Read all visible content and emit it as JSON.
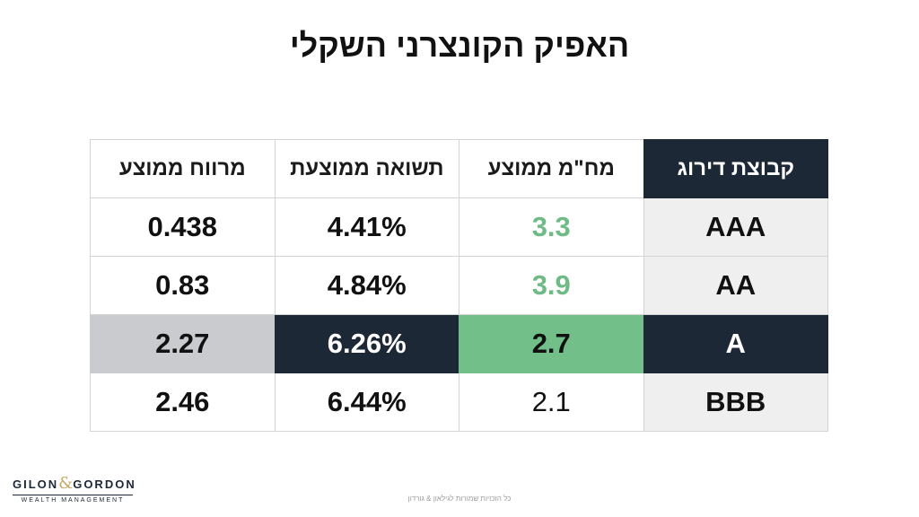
{
  "slide": {
    "title": "האפיק הקונצרני השקלי"
  },
  "table": {
    "headers": {
      "rating": "קבוצת דירוג",
      "duration": "מח\"מ ממוצע",
      "yield": "תשואה ממוצעת",
      "spread": "מרווח ממוצע"
    },
    "rows": [
      {
        "rating": "AAA",
        "duration": "3.3",
        "yield": "4.41%",
        "spread": "0.438"
      },
      {
        "rating": "AA",
        "duration": "3.9",
        "yield": "4.84%",
        "spread": "0.83"
      },
      {
        "rating": "A",
        "duration": "2.7",
        "yield": "6.26%",
        "spread": "2.27"
      },
      {
        "rating": "BBB",
        "duration": "2.1",
        "yield": "6.44%",
        "spread": "2.46"
      }
    ],
    "colors": {
      "navy": "#1c2836",
      "green": "#72bf8a",
      "green_text": "#6fba86",
      "gray": "#c9cbce",
      "rating_bg": "#efefef"
    }
  },
  "logo": {
    "left_word": "GILON",
    "ampersand": "&",
    "right_word": "GORDON",
    "subtitle": "WEALTH MANAGEMENT"
  },
  "footer": {
    "note": "כל הזכויות שמורות לגילאון & גורדון"
  }
}
